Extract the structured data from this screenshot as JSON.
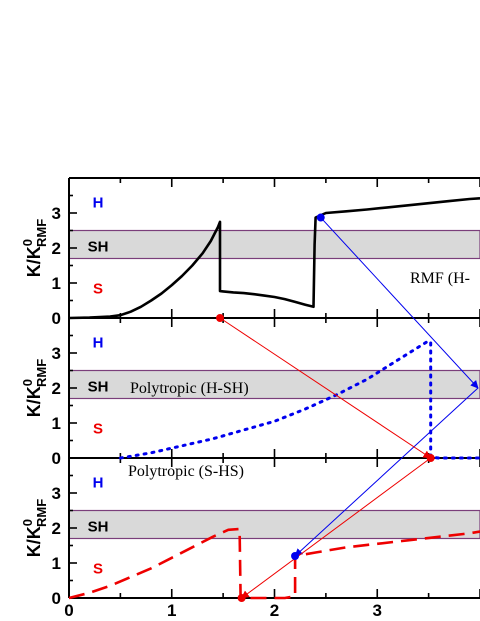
{
  "chart_data": {
    "type": "line",
    "x_axis": {
      "range": [
        0,
        4
      ],
      "ticks": [
        {
          "value": 0,
          "label": "0"
        },
        {
          "value": 1,
          "label": "1"
        },
        {
          "value": 2,
          "label": "2"
        },
        {
          "value": 3,
          "label": "3"
        }
      ]
    },
    "y_axis_label": {
      "main": "K/K",
      "sup": "0",
      "sub": "RMF"
    },
    "colors": {
      "H": "#0000ee",
      "SH": "#000000",
      "S": "#ee0000",
      "band_fill": "#d9d9d9",
      "band_stroke": "#7a3e7a",
      "black_curve": "#000000",
      "blue_curve": "#0000ee",
      "red_curve": "#ee0000"
    },
    "panels": [
      {
        "id": "rmf",
        "label": "RMF (H-",
        "ylim": [
          0,
          4
        ],
        "yticks": [
          {
            "value": 0,
            "label": "0"
          },
          {
            "value": 1,
            "label": "1"
          },
          {
            "value": 2,
            "label": "2"
          },
          {
            "value": 3,
            "label": "3"
          }
        ],
        "band": [
          1.7,
          2.5
        ],
        "region_labels": [
          {
            "text": "H",
            "y": 3.3,
            "color": "H"
          },
          {
            "text": "SH",
            "y": 2.05,
            "color": "SH"
          },
          {
            "text": "S",
            "y": 0.85,
            "color": "S"
          }
        ],
        "series": [
          {
            "style": "solid",
            "color": "black_curve",
            "points": [
              [
                0.0,
                0.0
              ],
              [
                0.2,
                0.01
              ],
              [
                0.4,
                0.04
              ],
              [
                0.5,
                0.08
              ],
              [
                0.6,
                0.18
              ],
              [
                0.7,
                0.32
              ],
              [
                0.8,
                0.5
              ],
              [
                0.9,
                0.7
              ],
              [
                1.0,
                0.94
              ],
              [
                1.1,
                1.2
              ],
              [
                1.2,
                1.5
              ],
              [
                1.3,
                1.85
              ],
              [
                1.38,
                2.2
              ],
              [
                1.45,
                2.6
              ],
              [
                1.47,
                2.75
              ],
              [
                1.47,
                0.77
              ],
              [
                1.5,
                0.76
              ],
              [
                1.6,
                0.73
              ],
              [
                1.7,
                0.71
              ],
              [
                1.8,
                0.68
              ],
              [
                1.9,
                0.64
              ],
              [
                2.0,
                0.6
              ],
              [
                2.1,
                0.54
              ],
              [
                2.2,
                0.46
              ],
              [
                2.3,
                0.38
              ],
              [
                2.38,
                0.32
              ],
              [
                2.39,
                2.1
              ],
              [
                2.4,
                2.87
              ],
              [
                2.5,
                3.0
              ],
              [
                2.7,
                3.05
              ],
              [
                2.9,
                3.1
              ],
              [
                3.1,
                3.16
              ],
              [
                3.3,
                3.22
              ],
              [
                3.5,
                3.28
              ],
              [
                3.7,
                3.34
              ],
              [
                3.9,
                3.4
              ],
              [
                4.0,
                3.42
              ]
            ]
          }
        ],
        "markers": [
          {
            "x": 2.45,
            "y": 2.87,
            "color": "blue_curve"
          },
          {
            "x": 1.47,
            "y": 0.0,
            "color": "red_curve"
          }
        ]
      },
      {
        "id": "poly_hsh",
        "label": "Polytropic (H-SH)",
        "ylim": [
          0,
          4
        ],
        "yticks": [
          {
            "value": 0,
            "label": "0"
          },
          {
            "value": 1,
            "label": "1"
          },
          {
            "value": 2,
            "label": "2"
          },
          {
            "value": 3,
            "label": "3"
          }
        ],
        "band": [
          1.7,
          2.5
        ],
        "region_labels": [
          {
            "text": "H",
            "y": 3.3,
            "color": "H"
          },
          {
            "text": "SH",
            "y": 2.05,
            "color": "SH"
          },
          {
            "text": "S",
            "y": 0.85,
            "color": "S"
          }
        ],
        "series": [
          {
            "style": "dotted",
            "color": "blue_curve",
            "points": [
              [
                0.5,
                0.0
              ],
              [
                0.8,
                0.15
              ],
              [
                1.1,
                0.35
              ],
              [
                1.4,
                0.55
              ],
              [
                1.7,
                0.8
              ],
              [
                2.0,
                1.05
              ],
              [
                2.3,
                1.4
              ],
              [
                2.6,
                1.8
              ],
              [
                2.9,
                2.25
              ],
              [
                3.2,
                2.8
              ],
              [
                3.5,
                3.35
              ],
              [
                3.52,
                3.3
              ],
              [
                3.52,
                0.02
              ],
              [
                3.6,
                0.0
              ],
              [
                4.0,
                0.0
              ]
            ]
          }
        ],
        "markers": [
          {
            "x": 3.52,
            "y": 0.0,
            "color": "red_curve"
          }
        ]
      },
      {
        "id": "poly_shs",
        "label": "Polytropic (S-HS)",
        "ylim": [
          0,
          4
        ],
        "yticks": [
          {
            "value": 0,
            "label": "0"
          },
          {
            "value": 1,
            "label": "1"
          },
          {
            "value": 2,
            "label": "2"
          },
          {
            "value": 3,
            "label": "3"
          }
        ],
        "band": [
          1.7,
          2.5
        ],
        "region_labels": [
          {
            "text": "H",
            "y": 3.3,
            "color": "H"
          },
          {
            "text": "SH",
            "y": 2.05,
            "color": "SH"
          },
          {
            "text": "S",
            "y": 0.85,
            "color": "S"
          }
        ],
        "series": [
          {
            "style": "dashed",
            "color": "red_curve",
            "points": [
              [
                0.0,
                0.0
              ],
              [
                0.2,
                0.15
              ],
              [
                0.4,
                0.35
              ],
              [
                0.6,
                0.6
              ],
              [
                0.8,
                0.85
              ],
              [
                1.0,
                1.15
              ],
              [
                1.2,
                1.45
              ],
              [
                1.4,
                1.75
              ],
              [
                1.55,
                1.95
              ],
              [
                1.66,
                1.97
              ],
              [
                1.67,
                0.0
              ],
              [
                1.7,
                0.0
              ],
              [
                2.1,
                0.0
              ],
              [
                2.2,
                0.05
              ],
              [
                2.2,
                1.2
              ],
              [
                2.4,
                1.3
              ],
              [
                2.7,
                1.45
              ],
              [
                3.0,
                1.55
              ],
              [
                3.3,
                1.65
              ],
              [
                3.6,
                1.75
              ],
              [
                3.9,
                1.85
              ],
              [
                4.0,
                1.9
              ]
            ]
          }
        ],
        "markers": [
          {
            "x": 2.2,
            "y": 1.2,
            "color": "blue_curve"
          },
          {
            "x": 1.68,
            "y": 0.0,
            "color": "red_curve"
          }
        ]
      }
    ],
    "arrows": [
      {
        "from_panel": 0,
        "from": [
          2.45,
          2.87
        ],
        "to_panel": 1,
        "to": [
          4.0,
          2.0
        ],
        "color": "blue_curve"
      },
      {
        "from_panel": 1,
        "from": [
          4.0,
          2.0
        ],
        "to_panel": 2,
        "to": [
          2.2,
          1.2
        ],
        "color": "blue_curve"
      },
      {
        "from_panel": 0,
        "from": [
          1.47,
          0.0
        ],
        "to_panel": 1,
        "to": [
          3.52,
          0.0
        ],
        "color": "red_curve"
      },
      {
        "from_panel": 1,
        "from": [
          3.52,
          0.0
        ],
        "to_panel": 2,
        "to": [
          1.68,
          0.0
        ],
        "color": "red_curve"
      }
    ]
  }
}
